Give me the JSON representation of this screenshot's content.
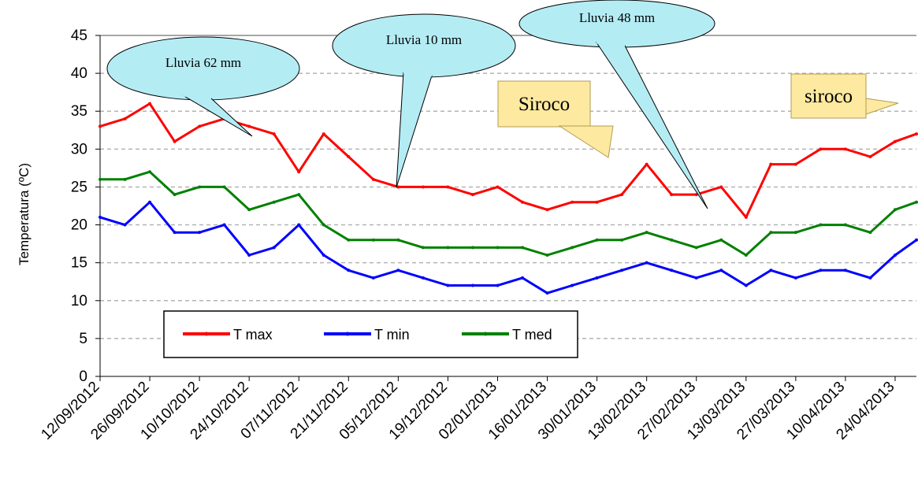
{
  "chart_data": {
    "type": "line",
    "title": "",
    "xlabel": "",
    "ylabel": "Temperatura (ºC)",
    "ylim": [
      0,
      45
    ],
    "yticks": [
      0,
      5,
      10,
      15,
      20,
      25,
      30,
      35,
      40,
      45
    ],
    "grid": "horizontal dashed",
    "legend_position": "bottom-left",
    "xlim": [
      "12/09/2012",
      "30/04/2013"
    ],
    "xtick_labels": [
      "12/09/2012",
      "26/09/2012",
      "10/10/2012",
      "24/10/2012",
      "07/11/2012",
      "21/11/2012",
      "05/12/2012",
      "19/12/2012",
      "02/01/2013",
      "16/01/2013",
      "30/01/2013",
      "13/02/2013",
      "27/02/2013",
      "13/03/2013",
      "27/03/2013",
      "10/04/2013",
      "24/04/2013"
    ],
    "x": [
      "12/09/2012",
      "19/09/2012",
      "26/09/2012",
      "03/10/2012",
      "10/10/2012",
      "17/10/2012",
      "24/10/2012",
      "31/10/2012",
      "07/11/2012",
      "14/11/2012",
      "21/11/2012",
      "28/11/2012",
      "05/12/2012",
      "12/12/2012",
      "19/12/2012",
      "26/12/2012",
      "02/01/2013",
      "09/01/2013",
      "16/01/2013",
      "23/01/2013",
      "30/01/2013",
      "06/02/2013",
      "13/02/2013",
      "20/02/2013",
      "27/02/2013",
      "06/03/2013",
      "13/03/2013",
      "20/03/2013",
      "27/03/2013",
      "03/04/2013",
      "10/04/2013",
      "17/04/2013",
      "24/04/2013",
      "30/04/2013"
    ],
    "series": [
      {
        "name": "T max",
        "color": "#ff0000",
        "values": [
          33,
          34,
          36,
          31,
          33,
          34,
          33,
          32,
          27,
          32,
          29,
          26,
          25,
          25,
          25,
          24,
          25,
          23,
          22,
          23,
          23,
          24,
          28,
          24,
          24,
          25,
          21,
          28,
          28,
          30,
          30,
          29,
          31,
          32
        ]
      },
      {
        "name": "T min",
        "color": "#0000ff",
        "values": [
          21,
          20,
          23,
          19,
          19,
          20,
          16,
          17,
          20,
          16,
          14,
          13,
          14,
          13,
          12,
          12,
          12,
          13,
          11,
          12,
          13,
          14,
          15,
          14,
          13,
          14,
          12,
          14,
          13,
          14,
          14,
          13,
          16,
          18
        ]
      },
      {
        "name": "T med",
        "color": "#008000",
        "values": [
          26,
          26,
          27,
          24,
          25,
          25,
          22,
          23,
          24,
          20,
          18,
          18,
          18,
          17,
          17,
          17,
          17,
          17,
          16,
          17,
          18,
          18,
          19,
          18,
          17,
          18,
          16,
          19,
          19,
          20,
          20,
          19,
          22,
          23
        ]
      }
    ],
    "annotations": [
      "Lluvia 62 mm",
      "Lluvia 10 mm",
      "Lluvia 48 mm",
      "Siroco",
      "siroco"
    ]
  }
}
